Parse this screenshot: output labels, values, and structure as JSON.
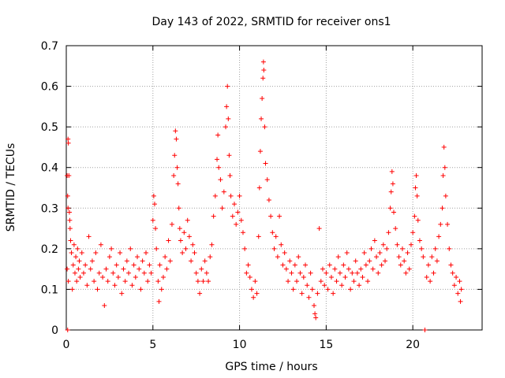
{
  "chart_data": {
    "type": "scatter",
    "title": "Day 143 of 2022, SRMTID for receiver ons1",
    "xlabel": "GPS time / hours",
    "ylabel": "SRMTID / TECUs",
    "xlim": [
      0,
      24
    ],
    "ylim": [
      0,
      0.7
    ],
    "xticks": [
      0,
      5,
      10,
      15,
      20
    ],
    "yticks": [
      0,
      0.1,
      0.2,
      0.3,
      0.4,
      0.5,
      0.6,
      0.7
    ],
    "xtick_labels": [
      "0",
      "5",
      "10",
      "15",
      "20"
    ],
    "ytick_labels": [
      "0",
      "0.1",
      "0.2",
      "0.3",
      "0.4",
      "0.5",
      "0.6",
      "0.7"
    ],
    "grid": true,
    "marker": "+",
    "series": [
      {
        "name": "ons1",
        "color": "#ff0000",
        "points": [
          [
            0.05,
            0.38
          ],
          [
            0.1,
            0.47
          ],
          [
            0.12,
            0.46
          ],
          [
            0.15,
            0.38
          ],
          [
            0.08,
            0.33
          ],
          [
            0.1,
            0.3
          ],
          [
            0.18,
            0.29
          ],
          [
            0.2,
            0.27
          ],
          [
            0.22,
            0.25
          ],
          [
            0.25,
            0.22
          ],
          [
            0.05,
            0.15
          ],
          [
            0.08,
            0.0
          ],
          [
            0.12,
            0.12
          ],
          [
            0.3,
            0.19
          ],
          [
            0.35,
            0.1
          ],
          [
            0.4,
            0.16
          ],
          [
            0.45,
            0.21
          ],
          [
            0.5,
            0.14
          ],
          [
            0.55,
            0.18
          ],
          [
            0.6,
            0.12
          ],
          [
            0.65,
            0.2
          ],
          [
            0.7,
            0.15
          ],
          [
            0.75,
            0.17
          ],
          [
            0.8,
            0.13
          ],
          [
            0.9,
            0.19
          ],
          [
            1.0,
            0.14
          ],
          [
            1.1,
            0.16
          ],
          [
            1.2,
            0.11
          ],
          [
            1.3,
            0.23
          ],
          [
            1.4,
            0.15
          ],
          [
            1.5,
            0.17
          ],
          [
            1.6,
            0.12
          ],
          [
            1.7,
            0.19
          ],
          [
            1.8,
            0.1
          ],
          [
            1.9,
            0.14
          ],
          [
            2.0,
            0.21
          ],
          [
            2.1,
            0.13
          ],
          [
            2.2,
            0.06
          ],
          [
            2.3,
            0.15
          ],
          [
            2.4,
            0.12
          ],
          [
            2.5,
            0.18
          ],
          [
            2.6,
            0.2
          ],
          [
            2.7,
            0.14
          ],
          [
            2.8,
            0.11
          ],
          [
            2.9,
            0.16
          ],
          [
            3.0,
            0.13
          ],
          [
            3.1,
            0.19
          ],
          [
            3.2,
            0.09
          ],
          [
            3.3,
            0.15
          ],
          [
            3.4,
            0.12
          ],
          [
            3.5,
            0.17
          ],
          [
            3.6,
            0.14
          ],
          [
            3.7,
            0.2
          ],
          [
            3.8,
            0.11
          ],
          [
            3.9,
            0.16
          ],
          [
            4.0,
            0.13
          ],
          [
            4.1,
            0.18
          ],
          [
            4.2,
            0.15
          ],
          [
            4.3,
            0.1
          ],
          [
            4.4,
            0.17
          ],
          [
            4.5,
            0.14
          ],
          [
            4.6,
            0.19
          ],
          [
            4.7,
            0.12
          ],
          [
            4.8,
            0.16
          ],
          [
            4.9,
            0.14
          ],
          [
            5.0,
            0.27
          ],
          [
            5.05,
            0.33
          ],
          [
            5.1,
            0.31
          ],
          [
            5.15,
            0.25
          ],
          [
            5.2,
            0.2
          ],
          [
            5.3,
            0.12
          ],
          [
            5.35,
            0.07
          ],
          [
            5.4,
            0.16
          ],
          [
            5.5,
            0.1
          ],
          [
            5.6,
            0.13
          ],
          [
            5.7,
            0.18
          ],
          [
            5.8,
            0.15
          ],
          [
            5.9,
            0.22
          ],
          [
            6.0,
            0.17
          ],
          [
            6.1,
            0.26
          ],
          [
            6.2,
            0.38
          ],
          [
            6.25,
            0.43
          ],
          [
            6.3,
            0.49
          ],
          [
            6.35,
            0.47
          ],
          [
            6.4,
            0.4
          ],
          [
            6.45,
            0.36
          ],
          [
            6.5,
            0.3
          ],
          [
            6.55,
            0.25
          ],
          [
            6.6,
            0.22
          ],
          [
            6.7,
            0.19
          ],
          [
            6.8,
            0.24
          ],
          [
            6.9,
            0.2
          ],
          [
            7.0,
            0.27
          ],
          [
            7.1,
            0.23
          ],
          [
            7.2,
            0.17
          ],
          [
            7.3,
            0.21
          ],
          [
            7.4,
            0.19
          ],
          [
            7.5,
            0.14
          ],
          [
            7.6,
            0.12
          ],
          [
            7.7,
            0.09
          ],
          [
            7.8,
            0.15
          ],
          [
            7.9,
            0.12
          ],
          [
            8.0,
            0.17
          ],
          [
            8.1,
            0.14
          ],
          [
            8.2,
            0.12
          ],
          [
            8.3,
            0.18
          ],
          [
            8.4,
            0.21
          ],
          [
            8.5,
            0.28
          ],
          [
            8.6,
            0.33
          ],
          [
            8.7,
            0.42
          ],
          [
            8.75,
            0.48
          ],
          [
            8.8,
            0.4
          ],
          [
            8.9,
            0.37
          ],
          [
            9.0,
            0.3
          ],
          [
            9.1,
            0.34
          ],
          [
            9.2,
            0.5
          ],
          [
            9.25,
            0.55
          ],
          [
            9.3,
            0.6
          ],
          [
            9.35,
            0.52
          ],
          [
            9.4,
            0.43
          ],
          [
            9.45,
            0.38
          ],
          [
            9.5,
            0.33
          ],
          [
            9.6,
            0.28
          ],
          [
            9.7,
            0.31
          ],
          [
            9.8,
            0.26
          ],
          [
            9.9,
            0.29
          ],
          [
            10.0,
            0.33
          ],
          [
            10.1,
            0.27
          ],
          [
            10.2,
            0.24
          ],
          [
            10.3,
            0.2
          ],
          [
            10.4,
            0.14
          ],
          [
            10.5,
            0.16
          ],
          [
            10.6,
            0.13
          ],
          [
            10.7,
            0.1
          ],
          [
            10.8,
            0.08
          ],
          [
            10.9,
            0.12
          ],
          [
            11.0,
            0.09
          ],
          [
            11.1,
            0.23
          ],
          [
            11.15,
            0.35
          ],
          [
            11.2,
            0.44
          ],
          [
            11.25,
            0.52
          ],
          [
            11.3,
            0.57
          ],
          [
            11.35,
            0.62
          ],
          [
            11.38,
            0.66
          ],
          [
            11.4,
            0.64
          ],
          [
            11.45,
            0.5
          ],
          [
            11.5,
            0.41
          ],
          [
            11.6,
            0.37
          ],
          [
            11.7,
            0.32
          ],
          [
            11.8,
            0.28
          ],
          [
            11.9,
            0.24
          ],
          [
            12.0,
            0.2
          ],
          [
            12.1,
            0.23
          ],
          [
            12.2,
            0.18
          ],
          [
            12.3,
            0.28
          ],
          [
            12.4,
            0.21
          ],
          [
            12.5,
            0.16
          ],
          [
            12.6,
            0.19
          ],
          [
            12.7,
            0.15
          ],
          [
            12.8,
            0.12
          ],
          [
            12.9,
            0.17
          ],
          [
            13.0,
            0.14
          ],
          [
            13.1,
            0.1
          ],
          [
            13.2,
            0.16
          ],
          [
            13.3,
            0.12
          ],
          [
            13.4,
            0.18
          ],
          [
            13.5,
            0.14
          ],
          [
            13.6,
            0.09
          ],
          [
            13.7,
            0.13
          ],
          [
            13.8,
            0.16
          ],
          [
            13.9,
            0.11
          ],
          [
            14.0,
            0.08
          ],
          [
            14.1,
            0.14
          ],
          [
            14.2,
            0.1
          ],
          [
            14.3,
            0.06
          ],
          [
            14.35,
            0.04
          ],
          [
            14.4,
            0.03
          ],
          [
            14.5,
            0.09
          ],
          [
            14.6,
            0.25
          ],
          [
            14.7,
            0.12
          ],
          [
            14.8,
            0.15
          ],
          [
            14.9,
            0.11
          ],
          [
            15.0,
            0.14
          ],
          [
            15.1,
            0.1
          ],
          [
            15.2,
            0.16
          ],
          [
            15.3,
            0.13
          ],
          [
            15.4,
            0.09
          ],
          [
            15.5,
            0.15
          ],
          [
            15.6,
            0.12
          ],
          [
            15.7,
            0.18
          ],
          [
            15.8,
            0.14
          ],
          [
            15.9,
            0.11
          ],
          [
            16.0,
            0.16
          ],
          [
            16.1,
            0.13
          ],
          [
            16.2,
            0.19
          ],
          [
            16.3,
            0.15
          ],
          [
            16.4,
            0.1
          ],
          [
            16.5,
            0.14
          ],
          [
            16.6,
            0.12
          ],
          [
            16.7,
            0.17
          ],
          [
            16.8,
            0.14
          ],
          [
            16.9,
            0.11
          ],
          [
            17.0,
            0.15
          ],
          [
            17.1,
            0.13
          ],
          [
            17.2,
            0.19
          ],
          [
            17.3,
            0.16
          ],
          [
            17.4,
            0.12
          ],
          [
            17.5,
            0.17
          ],
          [
            17.6,
            0.2
          ],
          [
            17.7,
            0.15
          ],
          [
            17.8,
            0.22
          ],
          [
            17.9,
            0.18
          ],
          [
            18.0,
            0.14
          ],
          [
            18.1,
            0.19
          ],
          [
            18.2,
            0.16
          ],
          [
            18.3,
            0.21
          ],
          [
            18.4,
            0.17
          ],
          [
            18.5,
            0.2
          ],
          [
            18.6,
            0.24
          ],
          [
            18.7,
            0.3
          ],
          [
            18.75,
            0.34
          ],
          [
            18.8,
            0.39
          ],
          [
            18.85,
            0.36
          ],
          [
            18.9,
            0.29
          ],
          [
            19.0,
            0.25
          ],
          [
            19.1,
            0.21
          ],
          [
            19.2,
            0.18
          ],
          [
            19.3,
            0.16
          ],
          [
            19.4,
            0.2
          ],
          [
            19.5,
            0.17
          ],
          [
            19.6,
            0.14
          ],
          [
            19.7,
            0.19
          ],
          [
            19.8,
            0.15
          ],
          [
            19.9,
            0.21
          ],
          [
            20.0,
            0.24
          ],
          [
            20.1,
            0.28
          ],
          [
            20.15,
            0.35
          ],
          [
            20.2,
            0.38
          ],
          [
            20.25,
            0.33
          ],
          [
            20.3,
            0.27
          ],
          [
            20.4,
            0.22
          ],
          [
            20.5,
            0.2
          ],
          [
            20.6,
            0.18
          ],
          [
            20.7,
            0.0
          ],
          [
            20.8,
            0.13
          ],
          [
            20.9,
            0.16
          ],
          [
            21.0,
            0.12
          ],
          [
            21.1,
            0.18
          ],
          [
            21.2,
            0.14
          ],
          [
            21.3,
            0.2
          ],
          [
            21.4,
            0.17
          ],
          [
            21.5,
            0.23
          ],
          [
            21.6,
            0.26
          ],
          [
            21.7,
            0.3
          ],
          [
            21.75,
            0.38
          ],
          [
            21.8,
            0.45
          ],
          [
            21.85,
            0.4
          ],
          [
            21.9,
            0.33
          ],
          [
            22.0,
            0.26
          ],
          [
            22.1,
            0.2
          ],
          [
            22.2,
            0.16
          ],
          [
            22.3,
            0.14
          ],
          [
            22.4,
            0.11
          ],
          [
            22.5,
            0.13
          ],
          [
            22.6,
            0.09
          ],
          [
            22.7,
            0.12
          ],
          [
            22.75,
            0.07
          ],
          [
            22.8,
            0.1
          ]
        ]
      }
    ]
  }
}
